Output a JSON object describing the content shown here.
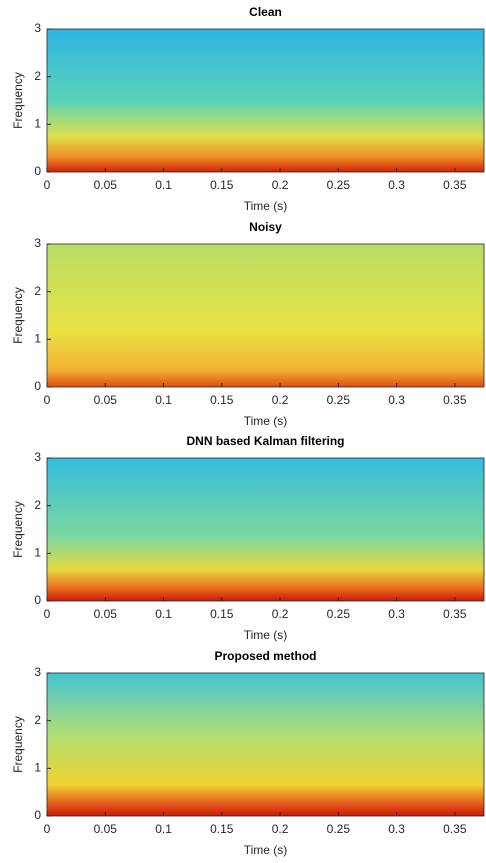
{
  "chart_data": [
    {
      "type": "heatmap",
      "title": "Clean",
      "xlabel": "Time (s)",
      "ylabel": "Frequency",
      "xlim": [
        0,
        0.375
      ],
      "ylim": [
        0,
        3
      ],
      "xticks": [
        0,
        0.05,
        0.1,
        0.15,
        0.2,
        0.25,
        0.3,
        0.35
      ],
      "yticks": [
        0,
        1,
        2,
        3
      ]
    },
    {
      "type": "heatmap",
      "title": "Noisy",
      "xlabel": "Time (s)",
      "ylabel": "Frequency",
      "xlim": [
        0,
        0.375
      ],
      "ylim": [
        0,
        3
      ],
      "xticks": [
        0,
        0.05,
        0.1,
        0.15,
        0.2,
        0.25,
        0.3,
        0.35
      ],
      "yticks": [
        0,
        1,
        2,
        3
      ]
    },
    {
      "type": "heatmap",
      "title": "DNN based Kalman filtering",
      "xlabel": "Time (s)",
      "ylabel": "Frequency",
      "xlim": [
        0,
        0.375
      ],
      "ylim": [
        0,
        3
      ],
      "xticks": [
        0,
        0.05,
        0.1,
        0.15,
        0.2,
        0.25,
        0.3,
        0.35
      ],
      "yticks": [
        0,
        1,
        2,
        3
      ]
    },
    {
      "type": "heatmap",
      "title": "Proposed method",
      "xlabel": "Time (s)",
      "ylabel": "Frequency",
      "xlim": [
        0,
        0.375
      ],
      "ylim": [
        0,
        3
      ],
      "xticks": [
        0,
        0.05,
        0.1,
        0.15,
        0.2,
        0.25,
        0.3,
        0.35
      ],
      "yticks": [
        0,
        1,
        2,
        3
      ]
    }
  ]
}
